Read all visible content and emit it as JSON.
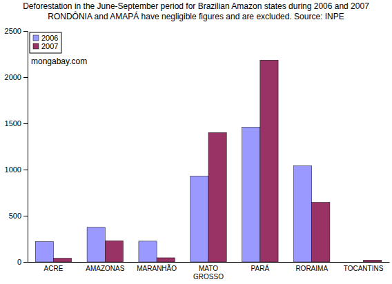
{
  "chart_data": {
    "type": "bar",
    "title": "Deforestation in the June-September period for Brazilian Amazon states during 2006 and 2007",
    "subtitle": "RONDÔNIA and AMAPÁ have negligible figures and are excluded.  Source: INPE",
    "annotation": "mongabay.com",
    "categories": [
      "ACRE",
      "AMAZONAS",
      "MARANHÃO",
      "MATO GROSSO",
      "PARÁ",
      "RORAIMA",
      "TOCANTINS"
    ],
    "series": [
      {
        "name": "2006",
        "color": "#9999ff",
        "values": [
          220,
          375,
          225,
          930,
          1460,
          1040,
          0
        ]
      },
      {
        "name": "2007",
        "color": "#993366",
        "values": [
          40,
          230,
          45,
          1400,
          2185,
          645,
          20
        ]
      }
    ],
    "ylim": [
      0,
      2500
    ],
    "yticks": [
      0,
      500,
      1000,
      1500,
      2000,
      2500
    ],
    "grid": false,
    "legend": "top-left"
  }
}
